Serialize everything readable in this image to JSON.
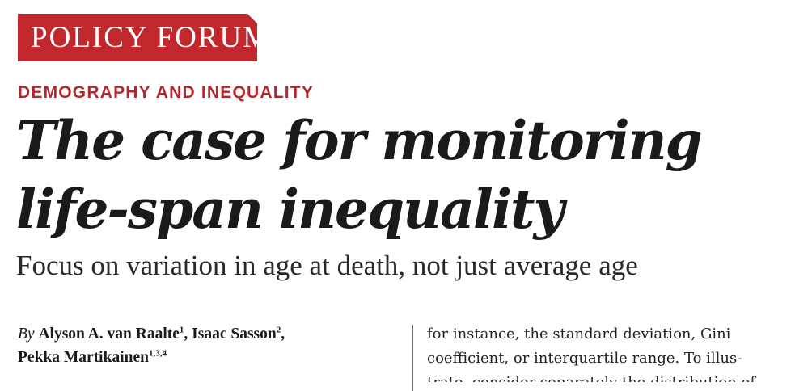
{
  "header": {
    "forum_label": "POLICY FORUM",
    "section_label": "DEMOGRAPHY AND INEQUALITY"
  },
  "article": {
    "title_lines": [
      "The case for monitoring",
      "life-span inequality"
    ],
    "subtitle": "Focus on variation in age at death, not just average age"
  },
  "byline": {
    "prefix": "By",
    "authors": [
      {
        "name": "Alyson A. van Raalte",
        "affiliations": "1",
        "separator": ", "
      },
      {
        "name": "Isaac Sasson",
        "affiliations": "2",
        "separator": ","
      },
      {
        "name": "Pekka Martikainen",
        "affiliations": "1,3,4",
        "separator": ""
      }
    ]
  },
  "body": {
    "lines": [
      "for instance, the standard deviation, Gini",
      "coefficient, or interquartile range. To illus-",
      "trate, consider separately the distribution of"
    ]
  },
  "colors": {
    "accent_red": "#c1282d",
    "text": "#1a1a1a"
  }
}
